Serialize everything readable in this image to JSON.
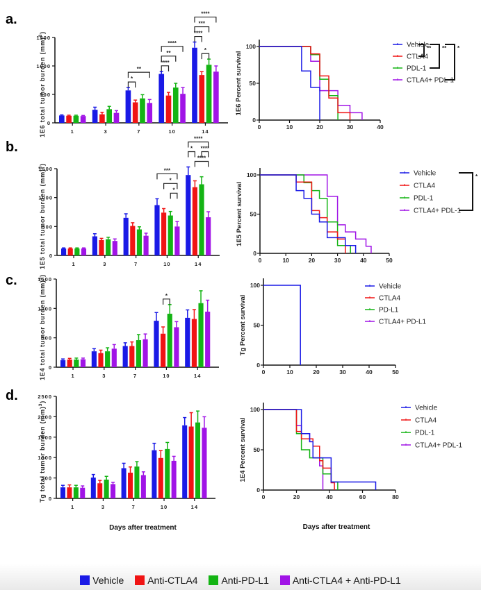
{
  "colors": {
    "vehicle": "#1a1ae6",
    "ctla4": "#f01414",
    "pdl1": "#14b414",
    "combo": "#a014e6",
    "axis": "#111111"
  },
  "footer_legend": [
    {
      "label": "Vehicle",
      "color": "#1a1ae6"
    },
    {
      "label": "Anti-CTLA4",
      "color": "#f01414"
    },
    {
      "label": "Anti-PD-L1",
      "color": "#14b414"
    },
    {
      "label": "Anti-CTLA4 + Anti-PD-L1",
      "color": "#a014e6"
    }
  ],
  "x_axis_title": "Days after treatment",
  "chart_data": [
    {
      "id": "a-bar",
      "panel": "a.",
      "type": "bar",
      "ylabel": "1E6 total tumor burden (mm3)",
      "categories": [
        "1",
        "3",
        "7",
        "10",
        "14"
      ],
      "ylim": [
        0,
        1500
      ],
      "yticks": [
        0,
        500,
        1000,
        1500
      ],
      "series": [
        {
          "name": "Vehicle",
          "values": [
            130,
            230,
            570,
            860,
            1320
          ],
          "errors": [
            10,
            45,
            50,
            45,
            100
          ]
        },
        {
          "name": "Anti-CTLA4",
          "values": [
            125,
            150,
            360,
            480,
            840
          ],
          "errors": [
            10,
            35,
            40,
            55,
            60
          ]
        },
        {
          "name": "Anti-PD-L1",
          "values": [
            125,
            240,
            430,
            620,
            1020
          ],
          "errors": [
            10,
            50,
            65,
            75,
            100
          ]
        },
        {
          "name": "Anti-CTLA4 + Anti-PD-L1",
          "values": [
            120,
            175,
            350,
            510,
            900
          ],
          "errors": [
            10,
            40,
            60,
            110,
            100
          ]
        }
      ],
      "significance": [
        {
          "day": "7",
          "from": 0,
          "to": 1,
          "label": "*",
          "level": 0
        },
        {
          "day": "7",
          "from": 0,
          "to": 3,
          "label": "**",
          "level": 1
        },
        {
          "day": "10",
          "from": 0,
          "to": 1,
          "label": "****",
          "level": 0
        },
        {
          "day": "10",
          "from": 0,
          "to": 2,
          "label": "**",
          "level": 1
        },
        {
          "day": "10",
          "from": 0,
          "to": 3,
          "label": "****",
          "level": 2
        },
        {
          "day": "14",
          "from": 0,
          "to": 1,
          "label": "****",
          "level": 0
        },
        {
          "day": "14",
          "from": 1,
          "to": 2,
          "label": "*",
          "level": -1
        },
        {
          "day": "14",
          "from": 0,
          "to": 2,
          "label": "***",
          "level": 1
        },
        {
          "day": "14",
          "from": 0,
          "to": 3,
          "label": "****",
          "level": 2
        }
      ]
    },
    {
      "id": "a-surv",
      "type": "line",
      "ylabel": "1E6 Percent survival",
      "xlim": [
        0,
        40
      ],
      "xticks": [
        0,
        10,
        20,
        30,
        40
      ],
      "ylim": [
        0,
        100
      ],
      "yticks": [
        0,
        50,
        100
      ],
      "legend": [
        "Vehicle",
        "CTLA4",
        "PDL-1",
        "CTLA4+ PDL-1"
      ],
      "legend_significance": [
        {
          "from": 0,
          "to": 1,
          "label": "**"
        },
        {
          "from": 0,
          "to": 2,
          "label": "**"
        },
        {
          "from": 0,
          "to": 3,
          "label": "*"
        }
      ],
      "series": [
        {
          "name": "Vehicle",
          "steps": [
            [
              0,
              100
            ],
            [
              14,
              66.7
            ],
            [
              17,
              44.4
            ],
            [
              20,
              0
            ]
          ]
        },
        {
          "name": "CTLA4",
          "steps": [
            [
              0,
              100
            ],
            [
              17,
              90
            ],
            [
              20,
              60
            ],
            [
              23,
              30
            ],
            [
              26,
              10
            ],
            [
              30,
              0
            ]
          ]
        },
        {
          "name": "PDL-1",
          "steps": [
            [
              0,
              100
            ],
            [
              17,
              88.9
            ],
            [
              20,
              55.6
            ],
            [
              23,
              33.3
            ],
            [
              26,
              0
            ]
          ]
        },
        {
          "name": "CTLA4+ PDL-1",
          "steps": [
            [
              0,
              100
            ],
            [
              17,
              80
            ],
            [
              20,
              40
            ],
            [
              26,
              20
            ],
            [
              30,
              10
            ],
            [
              34,
              0
            ]
          ]
        }
      ]
    },
    {
      "id": "b-bar",
      "panel": "b.",
      "type": "bar",
      "ylabel": "1E5 total tumor burden (mm3)",
      "categories": [
        "1",
        "3",
        "7",
        "10",
        "14"
      ],
      "ylim": [
        0,
        1500
      ],
      "yticks": [
        0,
        500,
        1000,
        1500
      ],
      "series": [
        {
          "name": "Vehicle",
          "values": [
            120,
            330,
            650,
            870,
            1390
          ],
          "errors": [
            10,
            45,
            70,
            110,
            140
          ]
        },
        {
          "name": "Anti-CTLA4",
          "values": [
            120,
            265,
            510,
            740,
            1180
          ],
          "errors": [
            10,
            30,
            55,
            70,
            110
          ]
        },
        {
          "name": "Anti-PD-L1",
          "values": [
            120,
            280,
            450,
            690,
            1230
          ],
          "errors": [
            10,
            35,
            45,
            70,
            130
          ]
        },
        {
          "name": "Anti-CTLA4 + Anti-PD-L1",
          "values": [
            120,
            250,
            340,
            500,
            660
          ],
          "errors": [
            10,
            35,
            45,
            85,
            95
          ]
        }
      ],
      "significance": [
        {
          "day": "10",
          "from": 2,
          "to": 3,
          "label": "*",
          "level": 0
        },
        {
          "day": "10",
          "from": 1,
          "to": 3,
          "label": "*",
          "level": 1
        },
        {
          "day": "10",
          "from": 0,
          "to": 3,
          "label": "***",
          "level": 2
        },
        {
          "day": "14",
          "from": 1,
          "to": 3,
          "label": "****",
          "level": 0
        },
        {
          "day": "14",
          "from": 0,
          "to": 1,
          "label": "*",
          "level": 1
        },
        {
          "day": "14",
          "from": 2,
          "to": 3,
          "label": "****",
          "level": 1
        },
        {
          "day": "14",
          "from": 0,
          "to": 3,
          "label": "****",
          "level": 2
        }
      ]
    },
    {
      "id": "b-surv",
      "type": "line",
      "ylabel": "1E5 Percent survival",
      "xlim": [
        0,
        50
      ],
      "xticks": [
        0,
        10,
        20,
        30,
        40,
        50
      ],
      "ylim": [
        0,
        100
      ],
      "yticks": [
        0,
        50,
        100
      ],
      "legend": [
        "Vehicle",
        "CTLA4",
        "PDL-1",
        "CTLA4+ PDL-1"
      ],
      "legend_significance": [
        {
          "from": 0,
          "to": 3,
          "label": "*"
        }
      ],
      "series": [
        {
          "name": "Vehicle",
          "steps": [
            [
              0,
              100
            ],
            [
              14,
              80
            ],
            [
              17,
              70
            ],
            [
              20,
              50
            ],
            [
              23,
              40
            ],
            [
              26,
              20
            ],
            [
              33,
              10
            ],
            [
              37,
              0
            ]
          ]
        },
        {
          "name": "CTLA4",
          "steps": [
            [
              0,
              100
            ],
            [
              14,
              90.9
            ],
            [
              20,
              54.5
            ],
            [
              23,
              45.5
            ],
            [
              26,
              27.3
            ],
            [
              30,
              18.2
            ],
            [
              33,
              0
            ]
          ]
        },
        {
          "name": "PDL-1",
          "steps": [
            [
              0,
              100
            ],
            [
              17,
              90
            ],
            [
              20,
              80
            ],
            [
              23,
              70
            ],
            [
              26,
              40
            ],
            [
              30,
              10
            ],
            [
              35,
              0
            ]
          ]
        },
        {
          "name": "CTLA4+ PDL-1",
          "steps": [
            [
              0,
              100
            ],
            [
              26,
              72.7
            ],
            [
              30,
              36.4
            ],
            [
              33,
              27.3
            ],
            [
              37,
              18.2
            ],
            [
              41,
              9.1
            ],
            [
              43,
              0
            ]
          ]
        }
      ]
    },
    {
      "id": "c-bar",
      "panel": "c.",
      "type": "bar",
      "ylabel": "1E4 total tumor burden (mm3)",
      "categories": [
        "1",
        "3",
        "7",
        "10",
        "14"
      ],
      "ylim": [
        0,
        1500
      ],
      "yticks": [
        0,
        500,
        1000,
        1500
      ],
      "series": [
        {
          "name": "Vehicle",
          "values": [
            120,
            270,
            360,
            790,
            840
          ],
          "errors": [
            20,
            45,
            55,
            140,
            135
          ]
        },
        {
          "name": "Anti-CTLA4",
          "values": [
            130,
            240,
            360,
            570,
            820
          ],
          "errors": [
            20,
            50,
            70,
            115,
            160
          ]
        },
        {
          "name": "Anti-PD-L1",
          "values": [
            130,
            270,
            460,
            910,
            1090
          ],
          "errors": [
            25,
            60,
            95,
            155,
            210
          ]
        },
        {
          "name": "Anti-CTLA4 + Anti-PD-L1",
          "values": [
            135,
            315,
            475,
            680,
            945
          ],
          "errors": [
            20,
            70,
            90,
            95,
            195
          ]
        }
      ],
      "significance": [
        {
          "day": "10",
          "from": 1,
          "to": 2,
          "label": "*",
          "level": 0
        }
      ]
    },
    {
      "id": "c-surv",
      "type": "line",
      "ylabel": "Tg Percent survival",
      "xlim": [
        0,
        50
      ],
      "xticks": [
        0,
        10,
        20,
        30,
        40,
        50
      ],
      "ylim": [
        0,
        100
      ],
      "yticks": [
        0,
        50,
        100
      ],
      "legend": [
        "Vehicle",
        "CTLA4",
        "PD-L1",
        "CTLA4+ PD-L1"
      ],
      "legend_significance": [],
      "series": [
        {
          "name": "Vehicle",
          "steps": [
            [
              0,
              100
            ],
            [
              14,
              0
            ]
          ]
        },
        {
          "name": "CTLA4",
          "steps": []
        },
        {
          "name": "PD-L1",
          "steps": []
        },
        {
          "name": "CTLA4+ PD-L1",
          "steps": []
        }
      ]
    },
    {
      "id": "d-bar",
      "panel": "d.",
      "type": "bar",
      "ylabel": "Tg total tumor burden (mm3)",
      "xlabel": "Days after treatment",
      "categories": [
        "1",
        "3",
        "7",
        "10",
        "14"
      ],
      "ylim": [
        0,
        2500
      ],
      "yticks": [
        0,
        500,
        1000,
        1500,
        2000,
        2500
      ],
      "series": [
        {
          "name": "Vehicle",
          "values": [
            270,
            510,
            740,
            1180,
            1790
          ],
          "errors": [
            50,
            75,
            120,
            170,
            190
          ]
        },
        {
          "name": "Anti-CTLA4",
          "values": [
            270,
            370,
            630,
            990,
            1760
          ],
          "errors": [
            60,
            70,
            140,
            180,
            340
          ]
        },
        {
          "name": "Anti-PD-L1",
          "values": [
            270,
            460,
            780,
            1210,
            1860
          ],
          "errors": [
            50,
            80,
            120,
            160,
            280
          ]
        },
        {
          "name": "Anti-CTLA4 + Anti-PD-L1",
          "values": [
            260,
            350,
            570,
            920,
            1730
          ],
          "errors": [
            45,
            45,
            80,
            110,
            270
          ]
        }
      ],
      "significance": []
    },
    {
      "id": "d-surv",
      "type": "line",
      "ylabel": "1E4 Percent survival",
      "xlabel": "Days after treatment",
      "xlim": [
        0,
        80
      ],
      "xticks": [
        0,
        20,
        40,
        60,
        80
      ],
      "ylim": [
        0,
        100
      ],
      "yticks": [
        0,
        50,
        100
      ],
      "legend": [
        "Vehicle",
        "CTLA4",
        "PDL-1",
        "CTLA4+ PDL-1"
      ],
      "legend_significance": [],
      "series": [
        {
          "name": "Vehicle",
          "steps": [
            [
              0,
              100
            ],
            [
              23,
              70
            ],
            [
              28,
              60
            ],
            [
              30,
              40
            ],
            [
              41,
              10
            ],
            [
              68,
              0
            ]
          ]
        },
        {
          "name": "CTLA4",
          "steps": [
            [
              0,
              100
            ],
            [
              20,
              72.7
            ],
            [
              23,
              63.6
            ],
            [
              30,
              54.5
            ],
            [
              34,
              36.4
            ],
            [
              36,
              27.3
            ],
            [
              41,
              9.1
            ],
            [
              43,
              0
            ]
          ]
        },
        {
          "name": "PDL-1",
          "steps": [
            [
              0,
              100
            ],
            [
              20,
              70
            ],
            [
              23,
              50
            ],
            [
              28,
              40
            ],
            [
              36,
              20
            ],
            [
              41,
              10
            ],
            [
              45,
              0
            ]
          ]
        },
        {
          "name": "CTLA4+ PDL-1",
          "steps": [
            [
              0,
              100
            ],
            [
              20,
              80
            ],
            [
              23,
              70
            ],
            [
              28,
              60
            ],
            [
              30,
              40
            ],
            [
              34,
              30
            ],
            [
              36,
              0
            ]
          ]
        }
      ]
    }
  ]
}
